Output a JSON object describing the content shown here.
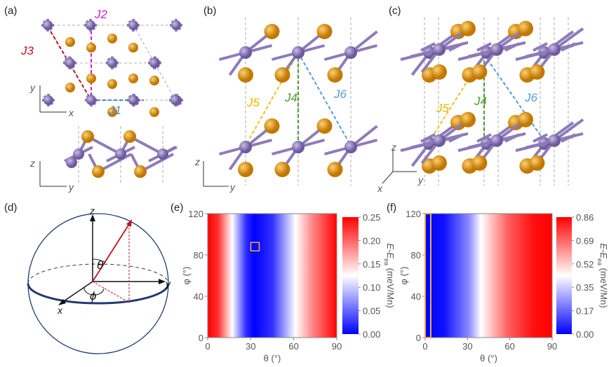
{
  "panels": {
    "a": {
      "label": "(a)",
      "couplings": [
        "J1",
        "J2",
        "J3"
      ],
      "axes_top": [
        "y",
        "x"
      ],
      "axes_bottom": [
        "z",
        "y"
      ]
    },
    "b": {
      "label": "(b)",
      "couplings": [
        "J5",
        "J4",
        "J6"
      ],
      "axes": [
        "z",
        "y"
      ]
    },
    "c": {
      "label": "(c)",
      "couplings": [
        "J5",
        "J4",
        "J6"
      ],
      "axes": [
        "z",
        "y",
        "x"
      ]
    },
    "d": {
      "label": "(d)",
      "axes": [
        "z",
        "y",
        "x"
      ],
      "angles": [
        "θ",
        "ϕ"
      ]
    },
    "e": {
      "label": "(e)"
    },
    "f": {
      "label": "(f)"
    }
  },
  "colors": {
    "mn_atom": "#8d7bb9",
    "ligand_atom": "#e39a12",
    "J1": "#4f86c6",
    "J2": "#d51fd1",
    "J3": "#c0141e",
    "J4": "#4e9a2e",
    "J5": "#f0c020",
    "J6": "#5a9bd6",
    "marker": "#e8b040"
  },
  "chart_data": [
    {
      "panel": "(e)",
      "type": "heatmap",
      "xlabel": "θ (°)",
      "ylabel": "φ (°)",
      "xlim": [
        0,
        90
      ],
      "ylim": [
        0,
        120
      ],
      "xticks": [
        "0",
        "30",
        "60",
        "90"
      ],
      "yticks": [
        "0",
        "40",
        "80",
        "120"
      ],
      "colorbar": {
        "label_main": "E-E",
        "label_sub": "ea",
        "label_unit": " (meV/Mn)",
        "ticks": [
          "0.00",
          "0.05",
          "0.10",
          "0.15",
          "0.20",
          "0.25"
        ],
        "range": [
          0,
          0.25
        ],
        "colormap": [
          "#0000ff",
          "#ffffff",
          "#ff0000"
        ]
      },
      "profile_theta": [
        0,
        15,
        30,
        45,
        65,
        90
      ],
      "profile_energy": [
        0.25,
        0.13,
        0.0,
        0.0,
        0.13,
        0.25
      ],
      "marker": {
        "theta": 33,
        "phi": 88
      }
    },
    {
      "panel": "(f)",
      "type": "heatmap",
      "xlabel": "θ (°)",
      "ylabel": "φ (°)",
      "xlim": [
        0,
        90
      ],
      "ylim": [
        0,
        120
      ],
      "xticks": [
        "0",
        "30",
        "60",
        "90"
      ],
      "yticks": [
        "0",
        "40",
        "80",
        "120"
      ],
      "colorbar": {
        "label_main": "E-E",
        "label_sub": "ea",
        "label_unit": " (meV/Mn)",
        "ticks": [
          "0.00",
          "0.17",
          "0.35",
          "0.52",
          "0.69",
          "0.86"
        ],
        "range": [
          0,
          0.86
        ],
        "colormap": [
          "#0000ff",
          "#ffffff",
          "#ff0000"
        ]
      },
      "profile_theta": [
        0,
        10,
        40,
        90
      ],
      "profile_energy": [
        0.0,
        0.05,
        0.45,
        0.86
      ],
      "marker": {
        "theta": 0,
        "phi_range": [
          0,
          120
        ]
      }
    }
  ]
}
